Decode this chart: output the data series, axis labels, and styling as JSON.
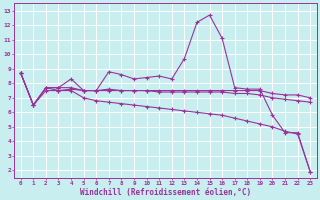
{
  "bg_color": "#c8eef0",
  "line_color": "#993399",
  "grid_color": "#ffffff",
  "xlabel": "Windchill (Refroidissement éolien,°C)",
  "xlim": [
    -0.5,
    23.5
  ],
  "ylim": [
    1.5,
    13.5
  ],
  "xticks": [
    0,
    1,
    2,
    3,
    4,
    5,
    6,
    7,
    8,
    9,
    10,
    11,
    12,
    13,
    14,
    15,
    16,
    17,
    18,
    19,
    20,
    21,
    22,
    23
  ],
  "yticks": [
    2,
    3,
    4,
    5,
    6,
    7,
    8,
    9,
    10,
    11,
    12,
    13
  ],
  "series": [
    {
      "x": [
        0,
        1,
        2,
        3,
        4,
        5,
        6,
        7,
        8,
        9,
        10,
        11,
        12,
        13,
        14,
        15,
        16,
        17,
        18,
        19,
        20,
        21,
        22,
        23
      ],
      "y": [
        8.7,
        6.5,
        7.7,
        7.7,
        8.3,
        7.5,
        7.5,
        8.8,
        8.6,
        8.3,
        8.4,
        8.5,
        8.3,
        9.7,
        12.2,
        12.7,
        11.1,
        7.7,
        7.6,
        7.6,
        5.8,
        4.6,
        4.6,
        1.9
      ]
    },
    {
      "x": [
        0,
        1,
        2,
        3,
        4,
        5,
        6,
        7,
        8,
        9,
        10,
        11,
        12,
        13,
        14,
        15,
        16,
        17,
        18,
        19,
        20,
        21,
        22,
        23
      ],
      "y": [
        8.7,
        6.5,
        7.7,
        7.5,
        7.6,
        7.5,
        7.5,
        7.5,
        7.5,
        7.5,
        7.5,
        7.5,
        7.5,
        7.5,
        7.5,
        7.5,
        7.5,
        7.5,
        7.5,
        7.5,
        7.3,
        7.2,
        7.2,
        7.0
      ]
    },
    {
      "x": [
        0,
        1,
        2,
        3,
        4,
        5,
        6,
        7,
        8,
        9,
        10,
        11,
        12,
        13,
        14,
        15,
        16,
        17,
        18,
        19,
        20,
        21,
        22,
        23
      ],
      "y": [
        8.7,
        6.5,
        7.7,
        7.7,
        7.7,
        7.5,
        7.5,
        7.6,
        7.5,
        7.5,
        7.5,
        7.4,
        7.4,
        7.4,
        7.4,
        7.4,
        7.4,
        7.3,
        7.3,
        7.2,
        7.0,
        6.9,
        6.8,
        6.7
      ]
    },
    {
      "x": [
        0,
        1,
        2,
        3,
        4,
        5,
        6,
        7,
        8,
        9,
        10,
        11,
        12,
        13,
        14,
        15,
        16,
        17,
        18,
        19,
        20,
        21,
        22,
        23
      ],
      "y": [
        8.7,
        6.5,
        7.5,
        7.5,
        7.5,
        7.0,
        6.8,
        6.7,
        6.6,
        6.5,
        6.4,
        6.3,
        6.2,
        6.1,
        6.0,
        5.9,
        5.8,
        5.6,
        5.4,
        5.2,
        5.0,
        4.7,
        4.5,
        1.9
      ]
    }
  ]
}
